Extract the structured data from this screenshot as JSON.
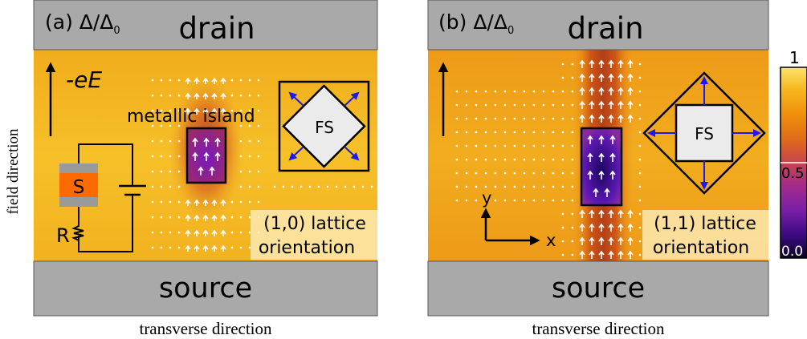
{
  "panels": [
    {
      "id": "a",
      "panel_label": "(a) Δ/Δ",
      "panel_label_sub": "0",
      "top_electrode": "drain",
      "bottom_electrode": "source",
      "field_label": "-eE",
      "island_label": "metallic island",
      "fs_label": "FS",
      "superconductor_label": "S",
      "resistor_label": "R",
      "orientation_line1": "(1,0) lattice",
      "orientation_line2": "orientation",
      "x_axis_label": "transverse direction"
    },
    {
      "id": "b",
      "panel_label": "(b) Δ/Δ",
      "panel_label_sub": "0",
      "top_electrode": "drain",
      "bottom_electrode": "source",
      "axis_x": "x",
      "axis_y": "y",
      "fs_label": "FS",
      "orientation_line1": "(1,1) lattice",
      "orientation_line2": "orientation",
      "x_axis_label": "transverse direction"
    }
  ],
  "y_axis_label": "field direction",
  "colorbar": {
    "ticks": [
      "1",
      "0.5",
      "0.0"
    ],
    "colormap": [
      "#0a0320",
      "#3a0a80",
      "#7a1fa8",
      "#a52b8a",
      "#c8444f",
      "#e06a1a",
      "#f08e0c",
      "#f7b51e",
      "#fbe46a"
    ]
  },
  "colors": {
    "electrode": "#a9a9a9",
    "background_gap": "#f2b21f",
    "arrow_blue": "#1a1af0",
    "superconductor": "#ff6a00",
    "label_box": "#fde9b0"
  }
}
